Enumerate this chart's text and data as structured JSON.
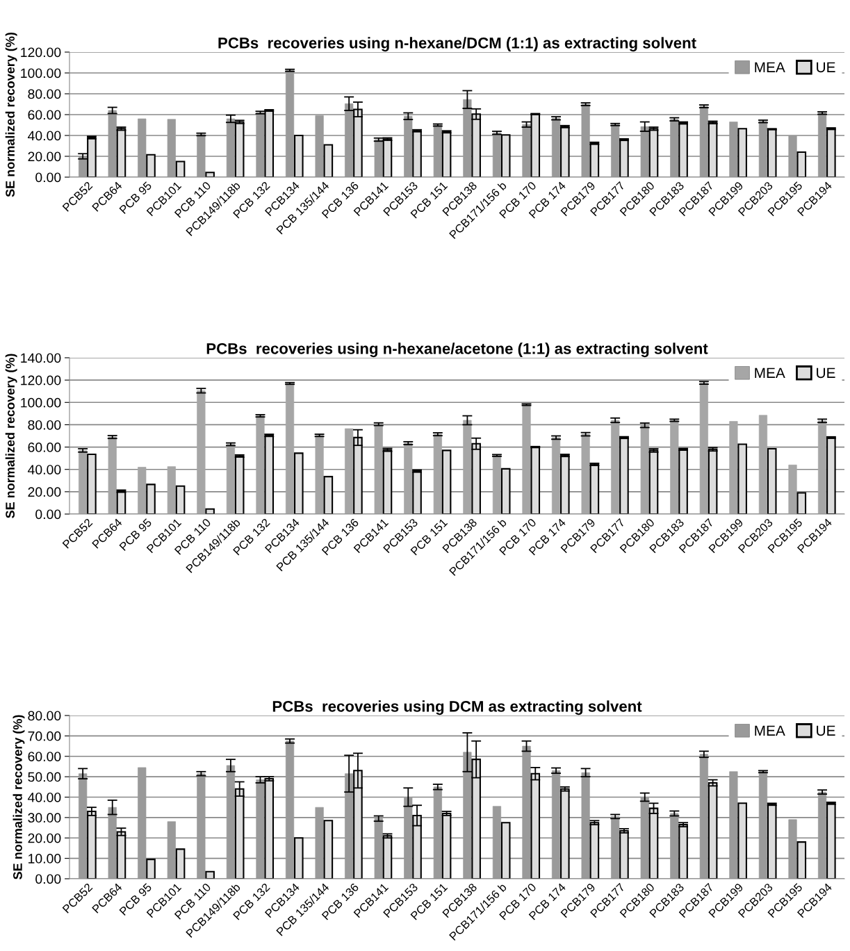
{
  "chart_data": [
    {
      "type": "bar",
      "title": "PCBs  recoveries using n-hexane/DCM (1:1) as extracting solvent",
      "ylabel": "SE normalized recovery (%)",
      "categories": [
        "PCB52",
        "PCB64",
        "PCB 95",
        "PCB101",
        "PCB 110",
        "PCB149/118b",
        "PCB 132",
        "PCB134",
        "PCB 135/144",
        "PCB 136",
        "PCB141",
        "PCB153",
        "PCB 151",
        "PCB138",
        "PCB171/156 b",
        "PCB 170",
        "PCB 174",
        "PCB179",
        "PCB177",
        "PCB180",
        "PCB183",
        "PCB187",
        "PCB199",
        "PCB203",
        "PCB195",
        "PCB194"
      ],
      "series": [
        {
          "name": "MEA",
          "color": "#9a9a9a",
          "values": [
            20,
            64,
            56,
            55.5,
            41,
            56,
            62,
            102.5,
            59,
            70.5,
            36,
            58.5,
            50,
            74.5,
            42.5,
            50.5,
            56.5,
            70,
            50.5,
            48.5,
            55.5,
            68,
            53,
            53.5,
            39.5,
            61.5
          ],
          "errors": [
            2.5,
            3,
            null,
            null,
            1.2,
            3.5,
            1.2,
            1,
            null,
            6.5,
            1.5,
            3.2,
            1,
            8.5,
            1.5,
            2.5,
            1.5,
            1.3,
            1,
            4.5,
            1.5,
            1.3,
            null,
            1.2,
            null,
            1.2
          ]
        },
        {
          "name": "UE",
          "color": "#dcdcdc",
          "values": [
            38,
            46.5,
            21.5,
            15,
            4.5,
            53,
            64,
            40,
            31,
            65,
            36.5,
            44.5,
            43.5,
            60.5,
            40.5,
            60.5,
            48.5,
            32.5,
            36,
            46.5,
            52,
            52.5,
            46.5,
            46,
            24,
            46.5
          ],
          "errors": [
            1.2,
            1.5,
            null,
            null,
            null,
            1.5,
            0.7,
            null,
            null,
            7,
            1.2,
            1,
            1,
            5,
            null,
            0.5,
            1,
            1,
            0.8,
            1.5,
            1,
            1.2,
            null,
            0.5,
            null,
            0.8
          ]
        }
      ],
      "ylim": [
        0,
        120
      ],
      "yticks": [
        {
          "value": 0,
          "label": "0.00"
        },
        {
          "value": 20,
          "label": "20.00"
        },
        {
          "value": 40,
          "label": "40.00"
        },
        {
          "value": 60,
          "label": "60.00"
        },
        {
          "value": 80,
          "label": "80.00"
        },
        {
          "value": 100,
          "label": "100.00"
        },
        {
          "value": 120,
          "label": "120.00"
        }
      ],
      "grid": "y",
      "legend": "top right"
    },
    {
      "type": "bar",
      "title": "PCBs  recoveries using n-hexane/acetone (1:1) as extracting solvent",
      "ylabel": "SE normalized recovery (%)",
      "categories": [
        "PCB52",
        "PCB64",
        "PCB 95",
        "PCB101",
        "PCB 110",
        "PCB149/118b",
        "PCB 132",
        "PCB134",
        "PCB 135/144",
        "PCB 136",
        "PCB141",
        "PCB153",
        "PCB 151",
        "PCB138",
        "PCB171/156 b",
        "PCB 170",
        "PCB 174",
        "PCB179",
        "PCB177",
        "PCB180",
        "PCB183",
        "PCB187",
        "PCB199",
        "PCB203",
        "PCB195",
        "PCB194"
      ],
      "series": [
        {
          "name": "MEA",
          "color": "#a6a6a6",
          "values": [
            57,
            69,
            42,
            42.5,
            110.5,
            62.5,
            88,
            117,
            70.5,
            76.5,
            80.5,
            63.5,
            71.5,
            84,
            52.5,
            98,
            68.5,
            71.5,
            84,
            79.5,
            84,
            117.5,
            83,
            88.5,
            44,
            83.5
          ],
          "errors": [
            1.5,
            1.3,
            null,
            null,
            2,
            1.2,
            1,
            0.8,
            1,
            null,
            1.2,
            1.3,
            1.3,
            4,
            0.8,
            0.7,
            1.5,
            1.5,
            2,
            2,
            1,
            1.2,
            null,
            null,
            null,
            1.5
          ]
        },
        {
          "name": "UE",
          "color": "#dcdcdc",
          "values": [
            53.5,
            20.5,
            26.5,
            25,
            4.5,
            52,
            70.5,
            54.5,
            33.5,
            68.5,
            57.5,
            38.5,
            57,
            63,
            40.5,
            60,
            52.5,
            44.5,
            68.5,
            57,
            58,
            58,
            62.5,
            58.5,
            19,
            68.5
          ],
          "errors": [
            null,
            1,
            null,
            null,
            null,
            1,
            1,
            null,
            null,
            7,
            1.3,
            1,
            null,
            5,
            null,
            0.5,
            1,
            1,
            0.8,
            1.5,
            0.8,
            1.5,
            null,
            null,
            null,
            0.7
          ]
        }
      ],
      "ylim": [
        0,
        140
      ],
      "yticks": [
        {
          "value": 0,
          "label": "0.00"
        },
        {
          "value": 20,
          "label": "20.00"
        },
        {
          "value": 40,
          "label": "40.00"
        },
        {
          "value": 60,
          "label": "60.00"
        },
        {
          "value": 80,
          "label": "80.00"
        },
        {
          "value": 100,
          "label": "100.00"
        },
        {
          "value": 120,
          "label": "120.00"
        },
        {
          "value": 140,
          "label": "140.00"
        }
      ],
      "grid": "y",
      "legend": "top right"
    },
    {
      "type": "bar",
      "title": "PCBs  recoveries using DCM as extracting solvent",
      "ylabel": "SE normalized recovery (%)",
      "categories": [
        "PCB52",
        "PCB64",
        "PCB 95",
        "PCB101",
        "PCB 110",
        "PCB149/118b",
        "PCB 132",
        "PCB134",
        "PCB 135/144",
        "PCB 136",
        "PCB141",
        "PCB153",
        "PCB 151",
        "PCB138",
        "PCB171/156 b",
        "PCB 170",
        "PCB 174",
        "PCB179",
        "PCB177",
        "PCB180",
        "PCB183",
        "PCB187",
        "PCB199",
        "PCB203",
        "PCB195",
        "PCB194"
      ],
      "series": [
        {
          "name": "MEA",
          "color": "#9a9a9a",
          "values": [
            51.5,
            35,
            54.5,
            28,
            51.5,
            55.5,
            48.5,
            67.5,
            35,
            51.5,
            29.5,
            40,
            45,
            62,
            35.5,
            65,
            53,
            52,
            30.5,
            40,
            32,
            61,
            52.5,
            52.5,
            29,
            42.5
          ],
          "errors": [
            2.5,
            3.5,
            null,
            null,
            1,
            3,
            1.5,
            1,
            null,
            9,
            1.3,
            4.5,
            1.3,
            9.5,
            null,
            2.5,
            1.3,
            2,
            1,
            2,
            1.2,
            1.5,
            null,
            0.5,
            null,
            1
          ]
        },
        {
          "name": "UE",
          "color": "#dcdcdc",
          "values": [
            33,
            23,
            9.5,
            14.5,
            3.5,
            44,
            49,
            20,
            28.5,
            53,
            21,
            31,
            32,
            58.5,
            27.5,
            51.5,
            44,
            27.5,
            23.5,
            34.5,
            26.5,
            47,
            37,
            36.5,
            18,
            37
          ],
          "errors": [
            2,
            1.8,
            null,
            null,
            null,
            3.5,
            1,
            null,
            null,
            8.5,
            1,
            5,
            1,
            9,
            null,
            3,
            1,
            1,
            1,
            2.5,
            1,
            1.5,
            null,
            0.5,
            null,
            0.5
          ]
        }
      ],
      "ylim": [
        0,
        80
      ],
      "yticks": [
        {
          "value": 0,
          "label": "0.00"
        },
        {
          "value": 10,
          "label": "10.00"
        },
        {
          "value": 20,
          "label": "20.00"
        },
        {
          "value": 30,
          "label": "30.00"
        },
        {
          "value": 40,
          "label": "40.00"
        },
        {
          "value": 50,
          "label": "50.00"
        },
        {
          "value": 60,
          "label": "60.00"
        },
        {
          "value": 70,
          "label": "70.00"
        },
        {
          "value": 80,
          "label": "80.00"
        }
      ],
      "grid": "y",
      "legend": "top right"
    }
  ]
}
